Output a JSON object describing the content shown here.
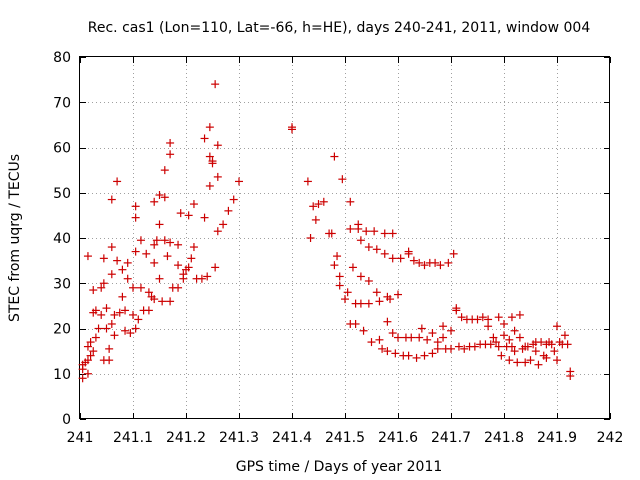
{
  "chart_data": {
    "type": "scatter",
    "title": "Rec. cas1 (Lon=110, Lat=-66, h=HE), days 240-241, 2011, window 004",
    "xlabel": "GPS time / Days of year 2011",
    "ylabel": "STEC from uqrg / TECUs",
    "xlim": [
      241,
      242
    ],
    "ylim": [
      0,
      80
    ],
    "x_ticks": [
      "241",
      "241.1",
      "241.2",
      "241.3",
      "241.4",
      "241.5",
      "241.6",
      "241.7",
      "241.8",
      "241.9",
      "242"
    ],
    "y_ticks": [
      "0",
      "10",
      "20",
      "30",
      "40",
      "50",
      "60",
      "70",
      "80"
    ],
    "grid": true,
    "marker": "+",
    "color": "#cc0000",
    "points": [
      [
        241.005,
        9
      ],
      [
        241.005,
        11
      ],
      [
        241.005,
        12
      ],
      [
        241.01,
        12.5
      ],
      [
        241.015,
        13
      ],
      [
        241.015,
        10
      ],
      [
        241.015,
        16
      ],
      [
        241.02,
        17
      ],
      [
        241.02,
        14
      ],
      [
        241.015,
        36
      ],
      [
        241.025,
        28.5
      ],
      [
        241.025,
        23.5
      ],
      [
        241.025,
        15
      ],
      [
        241.03,
        24
      ],
      [
        241.03,
        18
      ],
      [
        241.035,
        20
      ],
      [
        241.04,
        23
      ],
      [
        241.04,
        29
      ],
      [
        241.045,
        30
      ],
      [
        241.045,
        35.5
      ],
      [
        241.045,
        13
      ],
      [
        241.05,
        24.5
      ],
      [
        241.05,
        20
      ],
      [
        241.055,
        15.5
      ],
      [
        241.055,
        13
      ],
      [
        241.06,
        48.5
      ],
      [
        241.06,
        38
      ],
      [
        241.06,
        32
      ],
      [
        241.06,
        21
      ],
      [
        241.065,
        23
      ],
      [
        241.065,
        18.5
      ],
      [
        241.07,
        52.5
      ],
      [
        241.07,
        35
      ],
      [
        241.075,
        23.5
      ],
      [
        241.08,
        27
      ],
      [
        241.08,
        33
      ],
      [
        241.085,
        19.5
      ],
      [
        241.085,
        24
      ],
      [
        241.09,
        34.5
      ],
      [
        241.09,
        31
      ],
      [
        241.095,
        19
      ],
      [
        241.1,
        23
      ],
      [
        241.1,
        29
      ],
      [
        241.105,
        37
      ],
      [
        241.105,
        44.5
      ],
      [
        241.105,
        47
      ],
      [
        241.105,
        20
      ],
      [
        241.11,
        22
      ],
      [
        241.115,
        39.5
      ],
      [
        241.115,
        29
      ],
      [
        241.12,
        24
      ],
      [
        241.125,
        36.5
      ],
      [
        241.13,
        28
      ],
      [
        241.13,
        24
      ],
      [
        241.135,
        27
      ],
      [
        241.14,
        34.5
      ],
      [
        241.14,
        48
      ],
      [
        241.14,
        38.5
      ],
      [
        241.14,
        26.5
      ],
      [
        241.145,
        39.5
      ],
      [
        241.15,
        43
      ],
      [
        241.15,
        49.5
      ],
      [
        241.15,
        31
      ],
      [
        241.155,
        26
      ],
      [
        241.16,
        49
      ],
      [
        241.16,
        39.5
      ],
      [
        241.16,
        55
      ],
      [
        241.165,
        36
      ],
      [
        241.17,
        58.5
      ],
      [
        241.17,
        61
      ],
      [
        241.17,
        39
      ],
      [
        241.17,
        26
      ],
      [
        241.175,
        29
      ],
      [
        241.185,
        29
      ],
      [
        241.185,
        34
      ],
      [
        241.185,
        38.5
      ],
      [
        241.19,
        45.5
      ],
      [
        241.195,
        32
      ],
      [
        241.195,
        31
      ],
      [
        241.2,
        33
      ],
      [
        241.205,
        45
      ],
      [
        241.205,
        33.5
      ],
      [
        241.21,
        35.5
      ],
      [
        241.215,
        38
      ],
      [
        241.215,
        47.5
      ],
      [
        241.22,
        31
      ],
      [
        241.23,
        31
      ],
      [
        241.235,
        44.5
      ],
      [
        241.235,
        62
      ],
      [
        241.24,
        31.5
      ],
      [
        241.245,
        58
      ],
      [
        241.245,
        64.5
      ],
      [
        241.245,
        51.5
      ],
      [
        241.25,
        57
      ],
      [
        241.25,
        56.5
      ],
      [
        241.255,
        74
      ],
      [
        241.255,
        33.5
      ],
      [
        241.26,
        60.5
      ],
      [
        241.26,
        53.5
      ],
      [
        241.26,
        41.5
      ],
      [
        241.27,
        43
      ],
      [
        241.28,
        46
      ],
      [
        241.29,
        48.5
      ],
      [
        241.3,
        52.5
      ],
      [
        241.4,
        64
      ],
      [
        241.4,
        64.5
      ],
      [
        241.43,
        52.5
      ],
      [
        241.435,
        40
      ],
      [
        241.44,
        47
      ],
      [
        241.445,
        44
      ],
      [
        241.45,
        47.5
      ],
      [
        241.46,
        48
      ],
      [
        241.47,
        41
      ],
      [
        241.475,
        41
      ],
      [
        241.48,
        58
      ],
      [
        241.48,
        34
      ],
      [
        241.485,
        36
      ],
      [
        241.49,
        31.5
      ],
      [
        241.49,
        29.5
      ],
      [
        241.495,
        53
      ],
      [
        241.5,
        26.5
      ],
      [
        241.505,
        28
      ],
      [
        241.51,
        48
      ],
      [
        241.51,
        42
      ],
      [
        241.51,
        21
      ],
      [
        241.515,
        33.5
      ],
      [
        241.52,
        21
      ],
      [
        241.52,
        25.5
      ],
      [
        241.525,
        43
      ],
      [
        241.525,
        42
      ],
      [
        241.53,
        39.5
      ],
      [
        241.53,
        31.5
      ],
      [
        241.53,
        25.5
      ],
      [
        241.535,
        19.5
      ],
      [
        241.54,
        41.5
      ],
      [
        241.545,
        38
      ],
      [
        241.545,
        30.5
      ],
      [
        241.545,
        25.5
      ],
      [
        241.55,
        17
      ],
      [
        241.555,
        41.5
      ],
      [
        241.56,
        37.5
      ],
      [
        241.56,
        28
      ],
      [
        241.565,
        26
      ],
      [
        241.565,
        17.5
      ],
      [
        241.57,
        15.5
      ],
      [
        241.575,
        41
      ],
      [
        241.575,
        36.5
      ],
      [
        241.58,
        27
      ],
      [
        241.58,
        21.5
      ],
      [
        241.58,
        15
      ],
      [
        241.585,
        26.5
      ],
      [
        241.59,
        41
      ],
      [
        241.59,
        35.5
      ],
      [
        241.59,
        19
      ],
      [
        241.595,
        14.5
      ],
      [
        241.6,
        27.5
      ],
      [
        241.6,
        18
      ],
      [
        241.605,
        35.5
      ],
      [
        241.61,
        14
      ],
      [
        241.615,
        18
      ],
      [
        241.62,
        36.5
      ],
      [
        241.62,
        37
      ],
      [
        241.62,
        14
      ],
      [
        241.625,
        18
      ],
      [
        241.63,
        35
      ],
      [
        241.635,
        13.5
      ],
      [
        241.64,
        34.5
      ],
      [
        241.64,
        18
      ],
      [
        241.645,
        20
      ],
      [
        241.65,
        34
      ],
      [
        241.65,
        14
      ],
      [
        241.655,
        17.5
      ],
      [
        241.66,
        34.5
      ],
      [
        241.665,
        19
      ],
      [
        241.665,
        14.5
      ],
      [
        241.67,
        34.5
      ],
      [
        241.675,
        17
      ],
      [
        241.675,
        15.5
      ],
      [
        241.68,
        34
      ],
      [
        241.685,
        18
      ],
      [
        241.685,
        20.5
      ],
      [
        241.69,
        15.5
      ],
      [
        241.695,
        34.5
      ],
      [
        241.7,
        19.5
      ],
      [
        241.7,
        15.5
      ],
      [
        241.705,
        36.5
      ],
      [
        241.71,
        24.5
      ],
      [
        241.71,
        24
      ],
      [
        241.715,
        16
      ],
      [
        241.72,
        22.5
      ],
      [
        241.725,
        15.5
      ],
      [
        241.73,
        22
      ],
      [
        241.735,
        16
      ],
      [
        241.74,
        22
      ],
      [
        241.745,
        16
      ],
      [
        241.75,
        22
      ],
      [
        241.755,
        16.5
      ],
      [
        241.76,
        22.5
      ],
      [
        241.765,
        16.5
      ],
      [
        241.77,
        22
      ],
      [
        241.77,
        20.5
      ],
      [
        241.775,
        16.5
      ],
      [
        241.78,
        18
      ],
      [
        241.785,
        17
      ],
      [
        241.79,
        22.5
      ],
      [
        241.79,
        16
      ],
      [
        241.795,
        14
      ],
      [
        241.8,
        21
      ],
      [
        241.8,
        18.5
      ],
      [
        241.805,
        16
      ],
      [
        241.81,
        17.5
      ],
      [
        241.81,
        13
      ],
      [
        241.815,
        22.5
      ],
      [
        241.815,
        16
      ],
      [
        241.82,
        19.5
      ],
      [
        241.82,
        15
      ],
      [
        241.825,
        12.5
      ],
      [
        241.83,
        23
      ],
      [
        241.83,
        18
      ],
      [
        241.835,
        15.5
      ],
      [
        241.84,
        16
      ],
      [
        241.84,
        12.5
      ],
      [
        241.845,
        16
      ],
      [
        241.85,
        13
      ],
      [
        241.855,
        16.5
      ],
      [
        241.86,
        17
      ],
      [
        241.86,
        15
      ],
      [
        241.865,
        12
      ],
      [
        241.87,
        17
      ],
      [
        241.875,
        14
      ],
      [
        241.88,
        16.5
      ],
      [
        241.88,
        13.5
      ],
      [
        241.885,
        17
      ],
      [
        241.89,
        16.5
      ],
      [
        241.895,
        15
      ],
      [
        241.9,
        20.5
      ],
      [
        241.9,
        13
      ],
      [
        241.905,
        17
      ],
      [
        241.91,
        16.5
      ],
      [
        241.915,
        18.5
      ],
      [
        241.92,
        16.5
      ],
      [
        241.925,
        10.5
      ],
      [
        241.925,
        9.5
      ]
    ]
  }
}
